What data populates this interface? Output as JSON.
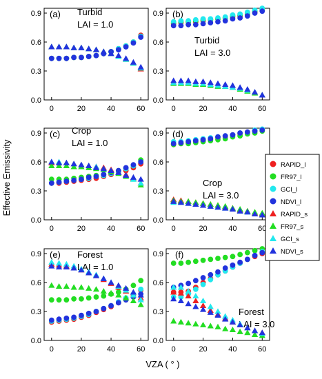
{
  "figure": {
    "ylabel": "Effective Emissivity",
    "xlabel": "VZA ( ° )"
  },
  "legend": {
    "entries": [
      {
        "label": "RAPID_l",
        "color": "#ee2020",
        "marker": "circle"
      },
      {
        "label": "FR97_l",
        "color": "#22dd22",
        "marker": "circle"
      },
      {
        "label": "GCI_l",
        "color": "#22e8ee",
        "marker": "circle"
      },
      {
        "label": "NDVI_l",
        "color": "#2233dd",
        "marker": "circle"
      },
      {
        "label": "RAPID_s",
        "color": "#ee2020",
        "marker": "triangle"
      },
      {
        "label": "FR97_s",
        "color": "#22dd22",
        "marker": "triangle"
      },
      {
        "label": "GCI_s",
        "color": "#22e8ee",
        "marker": "triangle"
      },
      {
        "label": "NDVI_s",
        "color": "#2233dd",
        "marker": "triangle"
      }
    ]
  },
  "chart_data": [
    {
      "type": "scatter",
      "panel": "(a)",
      "annotation": [
        "Turbid",
        "LAI = 1.0"
      ],
      "x": [
        0,
        5,
        10,
        15,
        20,
        25,
        30,
        35,
        40,
        45,
        50,
        55,
        60
      ],
      "xticks": [
        0,
        20,
        40,
        60
      ],
      "yticks": [
        0.0,
        0.3,
        0.6,
        0.9
      ],
      "ylim": [
        0,
        0.95
      ],
      "xlim": [
        -5,
        65
      ],
      "series": [
        {
          "name": "RAPID_l",
          "values": [
            0.43,
            0.43,
            0.43,
            0.44,
            0.44,
            0.45,
            0.46,
            0.48,
            0.5,
            0.53,
            0.56,
            0.6,
            0.67
          ]
        },
        {
          "name": "FR97_l",
          "values": [
            0.43,
            0.43,
            0.43,
            0.44,
            0.44,
            0.45,
            0.46,
            0.48,
            0.5,
            0.53,
            0.56,
            0.6,
            0.66
          ]
        },
        {
          "name": "GCI_l",
          "values": [
            0.43,
            0.43,
            0.43,
            0.44,
            0.44,
            0.45,
            0.46,
            0.48,
            0.5,
            0.53,
            0.56,
            0.6,
            0.66
          ]
        },
        {
          "name": "NDVI_l",
          "values": [
            0.43,
            0.43,
            0.43,
            0.44,
            0.44,
            0.45,
            0.46,
            0.48,
            0.5,
            0.52,
            0.55,
            0.59,
            0.65
          ]
        },
        {
          "name": "RAPID_s",
          "values": [
            0.55,
            0.55,
            0.55,
            0.54,
            0.54,
            0.53,
            0.52,
            0.5,
            0.48,
            0.45,
            0.42,
            0.38,
            0.32
          ]
        },
        {
          "name": "FR97_s",
          "values": [
            0.55,
            0.55,
            0.55,
            0.54,
            0.54,
            0.53,
            0.52,
            0.5,
            0.48,
            0.45,
            0.42,
            0.38,
            0.33
          ]
        },
        {
          "name": "GCI_s",
          "values": [
            0.55,
            0.55,
            0.55,
            0.54,
            0.54,
            0.53,
            0.52,
            0.5,
            0.48,
            0.45,
            0.42,
            0.38,
            0.33
          ]
        },
        {
          "name": "NDVI_s",
          "values": [
            0.55,
            0.55,
            0.55,
            0.54,
            0.54,
            0.53,
            0.52,
            0.5,
            0.48,
            0.46,
            0.43,
            0.39,
            0.34
          ]
        }
      ]
    },
    {
      "type": "scatter",
      "panel": "(b)",
      "annotation": [
        "Turbid",
        "LAI = 3.0"
      ],
      "x": [
        0,
        5,
        10,
        15,
        20,
        25,
        30,
        35,
        40,
        45,
        50,
        55,
        60
      ],
      "xticks": [
        0,
        20,
        40,
        60
      ],
      "yticks": [
        0.0,
        0.3,
        0.6,
        0.9
      ],
      "ylim": [
        0,
        0.95
      ],
      "xlim": [
        -5,
        65
      ],
      "series": [
        {
          "name": "RAPID_l",
          "values": [
            0.79,
            0.8,
            0.81,
            0.81,
            0.82,
            0.83,
            0.84,
            0.85,
            0.86,
            0.87,
            0.89,
            0.91,
            0.93
          ]
        },
        {
          "name": "FR97_l",
          "values": [
            0.8,
            0.81,
            0.81,
            0.82,
            0.83,
            0.83,
            0.84,
            0.85,
            0.87,
            0.88,
            0.9,
            0.92,
            0.94
          ]
        },
        {
          "name": "GCI_l",
          "values": [
            0.81,
            0.82,
            0.82,
            0.83,
            0.84,
            0.84,
            0.85,
            0.86,
            0.88,
            0.89,
            0.91,
            0.93,
            0.95
          ]
        },
        {
          "name": "NDVI_l",
          "values": [
            0.77,
            0.77,
            0.78,
            0.78,
            0.79,
            0.8,
            0.81,
            0.82,
            0.84,
            0.85,
            0.87,
            0.9,
            0.92
          ]
        },
        {
          "name": "RAPID_s",
          "values": [
            0.18,
            0.18,
            0.18,
            0.17,
            0.17,
            0.16,
            0.15,
            0.14,
            0.13,
            0.12,
            0.1,
            0.08,
            0.05
          ]
        },
        {
          "name": "FR97_s",
          "values": [
            0.17,
            0.17,
            0.17,
            0.16,
            0.16,
            0.15,
            0.14,
            0.14,
            0.13,
            0.11,
            0.09,
            0.07,
            0.05
          ]
        },
        {
          "name": "GCI_s",
          "values": [
            0.18,
            0.18,
            0.18,
            0.17,
            0.17,
            0.16,
            0.15,
            0.14,
            0.13,
            0.12,
            0.1,
            0.08,
            0.05
          ]
        },
        {
          "name": "NDVI_s",
          "values": [
            0.2,
            0.2,
            0.2,
            0.19,
            0.19,
            0.18,
            0.17,
            0.16,
            0.15,
            0.13,
            0.11,
            0.08,
            0.05
          ]
        }
      ]
    },
    {
      "type": "scatter",
      "panel": "(c)",
      "annotation": [
        "Crop",
        "LAI = 1.0"
      ],
      "x": [
        0,
        5,
        10,
        15,
        20,
        25,
        30,
        35,
        40,
        45,
        50,
        55,
        60
      ],
      "xticks": [
        0,
        20,
        40,
        60
      ],
      "yticks": [
        0.0,
        0.3,
        0.6,
        0.9
      ],
      "ylim": [
        0,
        0.95
      ],
      "xlim": [
        -5,
        65
      ],
      "series": [
        {
          "name": "RAPID_l",
          "values": [
            0.38,
            0.38,
            0.39,
            0.4,
            0.41,
            0.42,
            0.43,
            0.45,
            0.47,
            0.49,
            0.51,
            0.54,
            0.58
          ]
        },
        {
          "name": "FR97_l",
          "values": [
            0.42,
            0.42,
            0.42,
            0.43,
            0.44,
            0.45,
            0.46,
            0.47,
            0.49,
            0.51,
            0.53,
            0.56,
            0.62
          ]
        },
        {
          "name": "GCI_l",
          "values": [
            0.38,
            0.39,
            0.4,
            0.41,
            0.42,
            0.43,
            0.45,
            0.46,
            0.48,
            0.5,
            0.53,
            0.56,
            0.6
          ]
        },
        {
          "name": "NDVI_l",
          "values": [
            0.38,
            0.39,
            0.4,
            0.41,
            0.42,
            0.44,
            0.45,
            0.47,
            0.49,
            0.51,
            0.54,
            0.57,
            0.6
          ]
        },
        {
          "name": "RAPID_s",
          "values": [
            0.59,
            0.59,
            0.59,
            0.58,
            0.57,
            0.56,
            0.55,
            0.54,
            0.52,
            0.49,
            0.47,
            0.43,
            0.38
          ]
        },
        {
          "name": "FR97_s",
          "values": [
            0.56,
            0.56,
            0.56,
            0.55,
            0.55,
            0.54,
            0.53,
            0.52,
            0.5,
            0.48,
            0.45,
            0.42,
            0.36
          ]
        },
        {
          "name": "GCI_s",
          "values": [
            0.6,
            0.6,
            0.59,
            0.58,
            0.57,
            0.56,
            0.55,
            0.53,
            0.51,
            0.49,
            0.46,
            0.42,
            0.38
          ]
        },
        {
          "name": "NDVI_s",
          "values": [
            0.6,
            0.59,
            0.59,
            0.58,
            0.57,
            0.56,
            0.54,
            0.53,
            0.51,
            0.49,
            0.46,
            0.44,
            0.42
          ]
        }
      ]
    },
    {
      "type": "scatter",
      "panel": "(d)",
      "annotation": [
        "Crop",
        "LAI = 3.0"
      ],
      "x": [
        0,
        5,
        10,
        15,
        20,
        25,
        30,
        35,
        40,
        45,
        50,
        55,
        60
      ],
      "xticks": [
        0,
        20,
        40,
        60
      ],
      "yticks": [
        0.0,
        0.3,
        0.6,
        0.9
      ],
      "ylim": [
        0,
        0.95
      ],
      "xlim": [
        -5,
        65
      ],
      "series": [
        {
          "name": "RAPID_l",
          "values": [
            0.78,
            0.79,
            0.8,
            0.81,
            0.82,
            0.83,
            0.85,
            0.86,
            0.88,
            0.89,
            0.91,
            0.92,
            0.93
          ]
        },
        {
          "name": "FR97_l",
          "values": [
            0.78,
            0.79,
            0.79,
            0.8,
            0.81,
            0.82,
            0.83,
            0.84,
            0.86,
            0.87,
            0.89,
            0.9,
            0.92
          ]
        },
        {
          "name": "GCI_l",
          "values": [
            0.81,
            0.81,
            0.82,
            0.83,
            0.84,
            0.85,
            0.86,
            0.87,
            0.88,
            0.9,
            0.91,
            0.93,
            0.94
          ]
        },
        {
          "name": "NDVI_l",
          "values": [
            0.79,
            0.8,
            0.81,
            0.82,
            0.83,
            0.84,
            0.86,
            0.87,
            0.88,
            0.9,
            0.91,
            0.92,
            0.93
          ]
        },
        {
          "name": "RAPID_s",
          "values": [
            0.21,
            0.2,
            0.19,
            0.18,
            0.17,
            0.16,
            0.15,
            0.13,
            0.12,
            0.1,
            0.09,
            0.07,
            0.06
          ]
        },
        {
          "name": "FR97_s",
          "values": [
            0.2,
            0.19,
            0.19,
            0.18,
            0.17,
            0.16,
            0.15,
            0.14,
            0.12,
            0.11,
            0.09,
            0.08,
            0.07
          ]
        },
        {
          "name": "GCI_s",
          "values": [
            0.18,
            0.18,
            0.17,
            0.16,
            0.15,
            0.14,
            0.13,
            0.12,
            0.11,
            0.09,
            0.08,
            0.06,
            0.05
          ]
        },
        {
          "name": "NDVI_s",
          "values": [
            0.19,
            0.18,
            0.17,
            0.16,
            0.15,
            0.14,
            0.13,
            0.12,
            0.11,
            0.09,
            0.08,
            0.06,
            0.05
          ]
        }
      ]
    },
    {
      "type": "scatter",
      "panel": "(e)",
      "annotation": [
        "Forest",
        "LAI = 1.0"
      ],
      "x": [
        0,
        5,
        10,
        15,
        20,
        25,
        30,
        35,
        40,
        45,
        50,
        55,
        60
      ],
      "xticks": [
        0,
        20,
        40,
        60
      ],
      "yticks": [
        0.0,
        0.3,
        0.6,
        0.9
      ],
      "ylim": [
        0,
        0.95
      ],
      "xlim": [
        -5,
        65
      ],
      "series": [
        {
          "name": "RAPID_l",
          "values": [
            0.19,
            0.2,
            0.21,
            0.22,
            0.24,
            0.26,
            0.29,
            0.32,
            0.35,
            0.39,
            0.43,
            0.47,
            0.52
          ]
        },
        {
          "name": "FR97_l",
          "values": [
            0.42,
            0.42,
            0.42,
            0.43,
            0.43,
            0.44,
            0.45,
            0.46,
            0.48,
            0.5,
            0.53,
            0.57,
            0.62
          ]
        },
        {
          "name": "GCI_l",
          "values": [
            0.2,
            0.21,
            0.22,
            0.23,
            0.25,
            0.27,
            0.3,
            0.33,
            0.36,
            0.4,
            0.44,
            0.48,
            0.53
          ]
        },
        {
          "name": "NDVI_l",
          "values": [
            0.21,
            0.22,
            0.23,
            0.24,
            0.26,
            0.28,
            0.3,
            0.33,
            0.36,
            0.39,
            0.42,
            0.45,
            0.48
          ]
        },
        {
          "name": "RAPID_s",
          "values": [
            0.79,
            0.78,
            0.77,
            0.75,
            0.73,
            0.7,
            0.67,
            0.63,
            0.59,
            0.55,
            0.51,
            0.47,
            0.44
          ]
        },
        {
          "name": "FR97_s",
          "values": [
            0.57,
            0.56,
            0.56,
            0.55,
            0.55,
            0.54,
            0.53,
            0.51,
            0.49,
            0.47,
            0.44,
            0.41,
            0.37
          ]
        },
        {
          "name": "GCI_s",
          "values": [
            0.81,
            0.8,
            0.79,
            0.77,
            0.74,
            0.71,
            0.68,
            0.64,
            0.6,
            0.56,
            0.52,
            0.47,
            0.42
          ]
        },
        {
          "name": "NDVI_s",
          "values": [
            0.77,
            0.76,
            0.76,
            0.75,
            0.73,
            0.7,
            0.67,
            0.64,
            0.6,
            0.57,
            0.54,
            0.5,
            0.47
          ]
        }
      ]
    },
    {
      "type": "scatter",
      "panel": "(f)",
      "annotation": [
        "Forest",
        "LAI = 3.0"
      ],
      "x": [
        0,
        5,
        10,
        15,
        20,
        25,
        30,
        35,
        40,
        45,
        50,
        55,
        60
      ],
      "xticks": [
        0,
        20,
        40,
        60
      ],
      "yticks": [
        0.0,
        0.3,
        0.6,
        0.9
      ],
      "ylim": [
        0,
        0.95
      ],
      "xlim": [
        -5,
        65
      ],
      "series": [
        {
          "name": "RAPID_l",
          "values": [
            0.5,
            0.5,
            0.51,
            0.55,
            0.6,
            0.64,
            0.68,
            0.72,
            0.76,
            0.8,
            0.84,
            0.87,
            0.9
          ]
        },
        {
          "name": "FR97_l",
          "values": [
            0.8,
            0.8,
            0.81,
            0.82,
            0.83,
            0.84,
            0.85,
            0.86,
            0.87,
            0.89,
            0.91,
            0.93,
            0.95
          ]
        },
        {
          "name": "GCI_l",
          "values": [
            0.45,
            0.45,
            0.48,
            0.53,
            0.58,
            0.63,
            0.68,
            0.72,
            0.76,
            0.8,
            0.84,
            0.88,
            0.92
          ]
        },
        {
          "name": "NDVI_l",
          "values": [
            0.55,
            0.57,
            0.59,
            0.62,
            0.65,
            0.68,
            0.71,
            0.75,
            0.78,
            0.81,
            0.84,
            0.88,
            0.91
          ]
        },
        {
          "name": "RAPID_s",
          "values": [
            0.5,
            0.49,
            0.46,
            0.41,
            0.36,
            0.31,
            0.27,
            0.23,
            0.19,
            0.16,
            0.13,
            0.1,
            0.08
          ]
        },
        {
          "name": "FR97_s",
          "values": [
            0.2,
            0.19,
            0.18,
            0.17,
            0.16,
            0.15,
            0.14,
            0.12,
            0.11,
            0.09,
            0.08,
            0.06,
            0.05
          ]
        },
        {
          "name": "GCI_s",
          "values": [
            0.55,
            0.55,
            0.51,
            0.46,
            0.41,
            0.35,
            0.3,
            0.25,
            0.21,
            0.17,
            0.13,
            0.1,
            0.07
          ]
        },
        {
          "name": "NDVI_s",
          "values": [
            0.43,
            0.41,
            0.38,
            0.35,
            0.32,
            0.29,
            0.26,
            0.22,
            0.19,
            0.16,
            0.13,
            0.1,
            0.08
          ]
        }
      ]
    }
  ]
}
